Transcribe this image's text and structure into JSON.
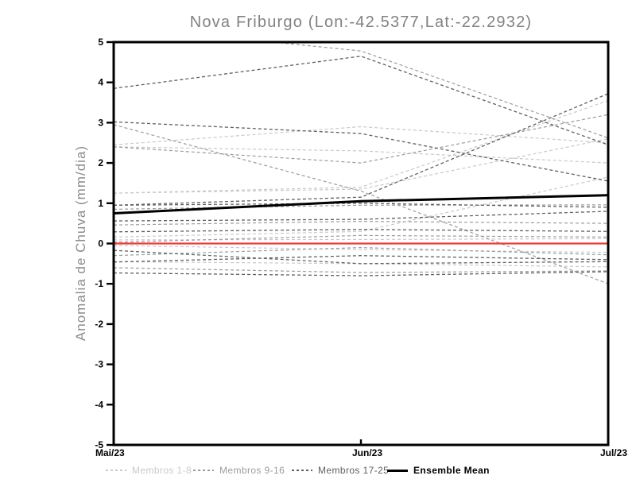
{
  "title": "Nova Friburgo (Lon:-42.5377,Lat:-22.2932)",
  "axes": {
    "y_label": "Anomalia de Chuva (mm/dia)",
    "y_ticks": [
      5,
      4,
      3,
      2,
      1,
      0,
      -1,
      -2,
      -3,
      -4,
      -5
    ],
    "x_ticks": [
      "Mai/23",
      "Jun/23",
      "Jul/23"
    ],
    "y_range": [
      -5,
      5
    ]
  },
  "colors": {
    "light": "#c9c9c9",
    "medium": "#9c9c9c",
    "dark": "#606060",
    "mean": "#000000",
    "zero": "#ee3a3a",
    "frame": "#000000",
    "title": "#828282"
  },
  "legend": [
    {
      "label": "Membros 1-8",
      "group": "light",
      "style": "dashed"
    },
    {
      "label": "Membros 9-16",
      "group": "medium",
      "style": "dashed"
    },
    {
      "label": "Membros 17-25",
      "group": "dark",
      "style": "dashed"
    },
    {
      "label": "Ensemble Mean",
      "group": "mean",
      "style": "solid"
    }
  ],
  "chart_data": {
    "type": "line",
    "title": "Nova Friburgo (Lon:-42.5377,Lat:-22.2932)",
    "xlabel": "",
    "ylabel": "Anomalia de Chuva (mm/dia)",
    "x": [
      "Mai/23",
      "Jun/23",
      "Jul/23"
    ],
    "ylim": [
      -5,
      5
    ],
    "grid": false,
    "legend_position": "bottom",
    "series": [
      {
        "name": "Membro 1",
        "group": "light",
        "style": "dashed",
        "values": [
          2.4,
          2.3,
          2.0
        ]
      },
      {
        "name": "Membro 2",
        "group": "light",
        "style": "dashed",
        "values": [
          1.25,
          1.4,
          3.55
        ]
      },
      {
        "name": "Membro 3",
        "group": "light",
        "style": "dashed",
        "values": [
          1.25,
          1.35,
          2.6
        ]
      },
      {
        "name": "Membro 4",
        "group": "light",
        "style": "dashed",
        "values": [
          0.16,
          0.3,
          1.65
        ]
      },
      {
        "name": "Membro 5",
        "group": "light",
        "style": "dashed",
        "values": [
          0.09,
          0.1,
          0.12
        ]
      },
      {
        "name": "Membro 6",
        "group": "light",
        "style": "dashed",
        "values": [
          -0.05,
          -0.15,
          -0.22
        ]
      },
      {
        "name": "Membro 7",
        "group": "light",
        "style": "dashed",
        "values": [
          -0.45,
          -0.5,
          -0.58
        ]
      },
      {
        "name": "Membro 8",
        "group": "light",
        "style": "dashed",
        "values": [
          2.45,
          2.9,
          2.5
        ]
      },
      {
        "name": "Membro 9",
        "group": "medium",
        "style": "dashed",
        "values": [
          5.4,
          4.78,
          2.62
        ]
      },
      {
        "name": "Membro 10",
        "group": "medium",
        "style": "dashed",
        "values": [
          2.95,
          1.3,
          -1.0
        ]
      },
      {
        "name": "Membro 11",
        "group": "medium",
        "style": "dashed",
        "values": [
          2.4,
          2.0,
          3.2
        ]
      },
      {
        "name": "Membro 12",
        "group": "medium",
        "style": "dashed",
        "values": [
          0.85,
          0.95,
          0.96
        ]
      },
      {
        "name": "Membro 13",
        "group": "medium",
        "style": "dashed",
        "values": [
          0.46,
          0.55,
          0.5
        ]
      },
      {
        "name": "Membro 14",
        "group": "medium",
        "style": "dashed",
        "values": [
          0.03,
          0.2,
          0.16
        ]
      },
      {
        "name": "Membro 15",
        "group": "medium",
        "style": "dashed",
        "values": [
          -0.3,
          -0.1,
          -0.28
        ]
      },
      {
        "name": "Membro 16",
        "group": "medium",
        "style": "dashed",
        "values": [
          -0.6,
          -0.72,
          -0.68
        ]
      },
      {
        "name": "Membro 17",
        "group": "dark",
        "style": "dashed",
        "values": [
          3.85,
          4.65,
          2.45
        ]
      },
      {
        "name": "Membro 18",
        "group": "dark",
        "style": "dashed",
        "values": [
          3.02,
          2.73,
          1.55
        ]
      },
      {
        "name": "Membro 19",
        "group": "dark",
        "style": "dashed",
        "values": [
          0.95,
          1.15,
          3.72
        ]
      },
      {
        "name": "Membro 20",
        "group": "dark",
        "style": "dashed",
        "values": [
          0.95,
          1.0,
          0.9
        ]
      },
      {
        "name": "Membro 21",
        "group": "dark",
        "style": "dashed",
        "values": [
          0.56,
          0.6,
          0.8
        ]
      },
      {
        "name": "Membro 22",
        "group": "dark",
        "style": "dashed",
        "values": [
          0.29,
          0.35,
          0.3
        ]
      },
      {
        "name": "Membro 23",
        "group": "dark",
        "style": "dashed",
        "values": [
          -0.17,
          -0.5,
          -0.45
        ]
      },
      {
        "name": "Membro 24",
        "group": "dark",
        "style": "dashed",
        "values": [
          -0.46,
          -0.3,
          -0.4
        ]
      },
      {
        "name": "Membro 25",
        "group": "dark",
        "style": "dashed",
        "values": [
          -0.73,
          -0.8,
          -0.7
        ]
      },
      {
        "name": "Zero Line",
        "group": "zero",
        "style": "solid",
        "values": [
          0,
          0,
          0
        ]
      },
      {
        "name": "Ensemble Mean",
        "group": "mean",
        "style": "solid",
        "values": [
          0.75,
          1.05,
          1.2
        ]
      }
    ]
  }
}
